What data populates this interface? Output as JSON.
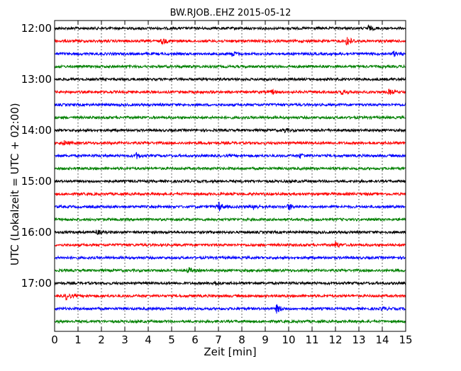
{
  "chart_data": {
    "type": "line",
    "title": "BW.RJOB..EHZ 2015-05-12",
    "xlabel": "Zeit  [min]",
    "ylabel": "UTC (Lokalzeit = UTC + 02:00)",
    "xlim": [
      0,
      15
    ],
    "x_ticks": [
      "0",
      "1",
      "2",
      "3",
      "4",
      "5",
      "6",
      "7",
      "8",
      "9",
      "10",
      "11",
      "12",
      "13",
      "14",
      "15"
    ],
    "y_ticks": [
      "12:00",
      "13:00",
      "14:00",
      "15:00",
      "16:00",
      "17:00"
    ],
    "grid": "vertical dotted",
    "colors": [
      "#000000",
      "#ff0000",
      "#0000ff",
      "#008000"
    ],
    "series": [
      {
        "start": "12:00",
        "color": "#000000",
        "events": [
          {
            "t": 13.4,
            "amp": 1.6
          }
        ]
      },
      {
        "start": "12:15",
        "color": "#ff0000",
        "events": [
          {
            "t": 4.6,
            "amp": 1.8
          },
          {
            "t": 12.5,
            "amp": 3.5
          }
        ]
      },
      {
        "start": "12:30",
        "color": "#0000ff",
        "events": [
          {
            "t": 7.6,
            "amp": 1.6
          },
          {
            "t": 14.5,
            "amp": 1.4
          }
        ]
      },
      {
        "start": "12:45",
        "color": "#008000",
        "events": []
      },
      {
        "start": "13:00",
        "color": "#000000",
        "events": []
      },
      {
        "start": "13:15",
        "color": "#ff0000",
        "events": [
          {
            "t": 9.3,
            "amp": 1.4
          },
          {
            "t": 12.3,
            "amp": 1.6
          },
          {
            "t": 14.3,
            "amp": 1.6
          }
        ]
      },
      {
        "start": "13:30",
        "color": "#0000ff",
        "events": []
      },
      {
        "start": "13:45",
        "color": "#008000",
        "events": []
      },
      {
        "start": "14:00",
        "color": "#000000",
        "events": [
          {
            "t": 9.8,
            "amp": 1.4
          }
        ]
      },
      {
        "start": "14:15",
        "color": "#ff0000",
        "events": [
          {
            "t": 0.4,
            "amp": 1.4
          }
        ]
      },
      {
        "start": "14:30",
        "color": "#0000ff",
        "events": [
          {
            "t": 3.5,
            "amp": 1.6
          },
          {
            "t": 10.5,
            "amp": 1.4
          }
        ]
      },
      {
        "start": "14:45",
        "color": "#008000",
        "events": []
      },
      {
        "start": "15:00",
        "color": "#000000",
        "events": []
      },
      {
        "start": "15:15",
        "color": "#ff0000",
        "events": []
      },
      {
        "start": "15:30",
        "color": "#0000ff",
        "events": [
          {
            "t": 7.0,
            "amp": 3.2
          },
          {
            "t": 8.5,
            "amp": 1.6
          },
          {
            "t": 10.0,
            "amp": 2.2
          }
        ]
      },
      {
        "start": "15:45",
        "color": "#008000",
        "events": []
      },
      {
        "start": "16:00",
        "color": "#000000",
        "events": [
          {
            "t": 1.8,
            "amp": 1.3
          }
        ]
      },
      {
        "start": "16:15",
        "color": "#ff0000",
        "events": [
          {
            "t": 12.0,
            "amp": 2.0
          }
        ]
      },
      {
        "start": "16:30",
        "color": "#0000ff",
        "events": []
      },
      {
        "start": "16:45",
        "color": "#008000",
        "events": [
          {
            "t": 5.7,
            "amp": 1.8
          }
        ]
      },
      {
        "start": "17:00",
        "color": "#000000",
        "events": [
          {
            "t": 6.8,
            "amp": 1.8
          }
        ]
      },
      {
        "start": "17:15",
        "color": "#ff0000",
        "events": [
          {
            "t": 0.5,
            "amp": 2.2
          }
        ]
      },
      {
        "start": "17:30",
        "color": "#0000ff",
        "events": [
          {
            "t": 9.5,
            "amp": 2.8
          },
          {
            "t": 14.0,
            "amp": 1.2
          }
        ]
      },
      {
        "start": "17:45",
        "color": "#008000",
        "events": []
      }
    ]
  }
}
